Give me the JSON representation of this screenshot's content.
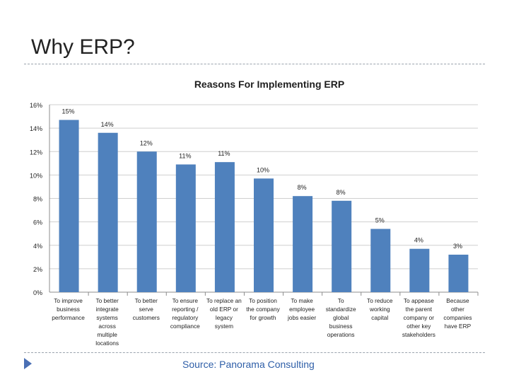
{
  "slide": {
    "title": "Why ERP?",
    "source": "Source: Panorama Consulting"
  },
  "colors": {
    "bar": "#4f81bd",
    "grid": "#cfcfcf",
    "text": "#1f1f1f"
  },
  "chart_data": {
    "type": "bar",
    "title": "Reasons For Implementing ERP",
    "xlabel": "",
    "ylabel": "",
    "ylim": [
      0,
      16
    ],
    "yticks": [
      "0%",
      "2%",
      "4%",
      "6%",
      "8%",
      "10%",
      "12%",
      "14%",
      "16%"
    ],
    "grid": true,
    "categories": [
      [
        "To improve",
        "business",
        "performance"
      ],
      [
        "To better",
        "integrate",
        "systems",
        "across",
        "multiple",
        "locations"
      ],
      [
        "To better",
        "serve",
        "customers"
      ],
      [
        "To ensure",
        "reporting /",
        "regulatory",
        "compliance"
      ],
      [
        "To replace an",
        "old ERP or",
        "legacy",
        "system"
      ],
      [
        "To position",
        "the company",
        "for growth"
      ],
      [
        "To make",
        "employee",
        "jobs easier"
      ],
      [
        "To",
        "standardize",
        "global",
        "business",
        "operations"
      ],
      [
        "To reduce",
        "working",
        "capital"
      ],
      [
        "To appease",
        "the parent",
        "company or",
        "other key",
        "stakeholders"
      ],
      [
        "Because",
        "other",
        "companies",
        "have ERP"
      ]
    ],
    "values": [
      14.7,
      13.6,
      12.0,
      10.9,
      11.1,
      9.7,
      8.2,
      7.8,
      5.4,
      3.7,
      3.2
    ],
    "labels": [
      "15%",
      "14%",
      "12%",
      "11%",
      "11%",
      "10%",
      "8%",
      "8%",
      "5%",
      "4%",
      "3%"
    ]
  }
}
